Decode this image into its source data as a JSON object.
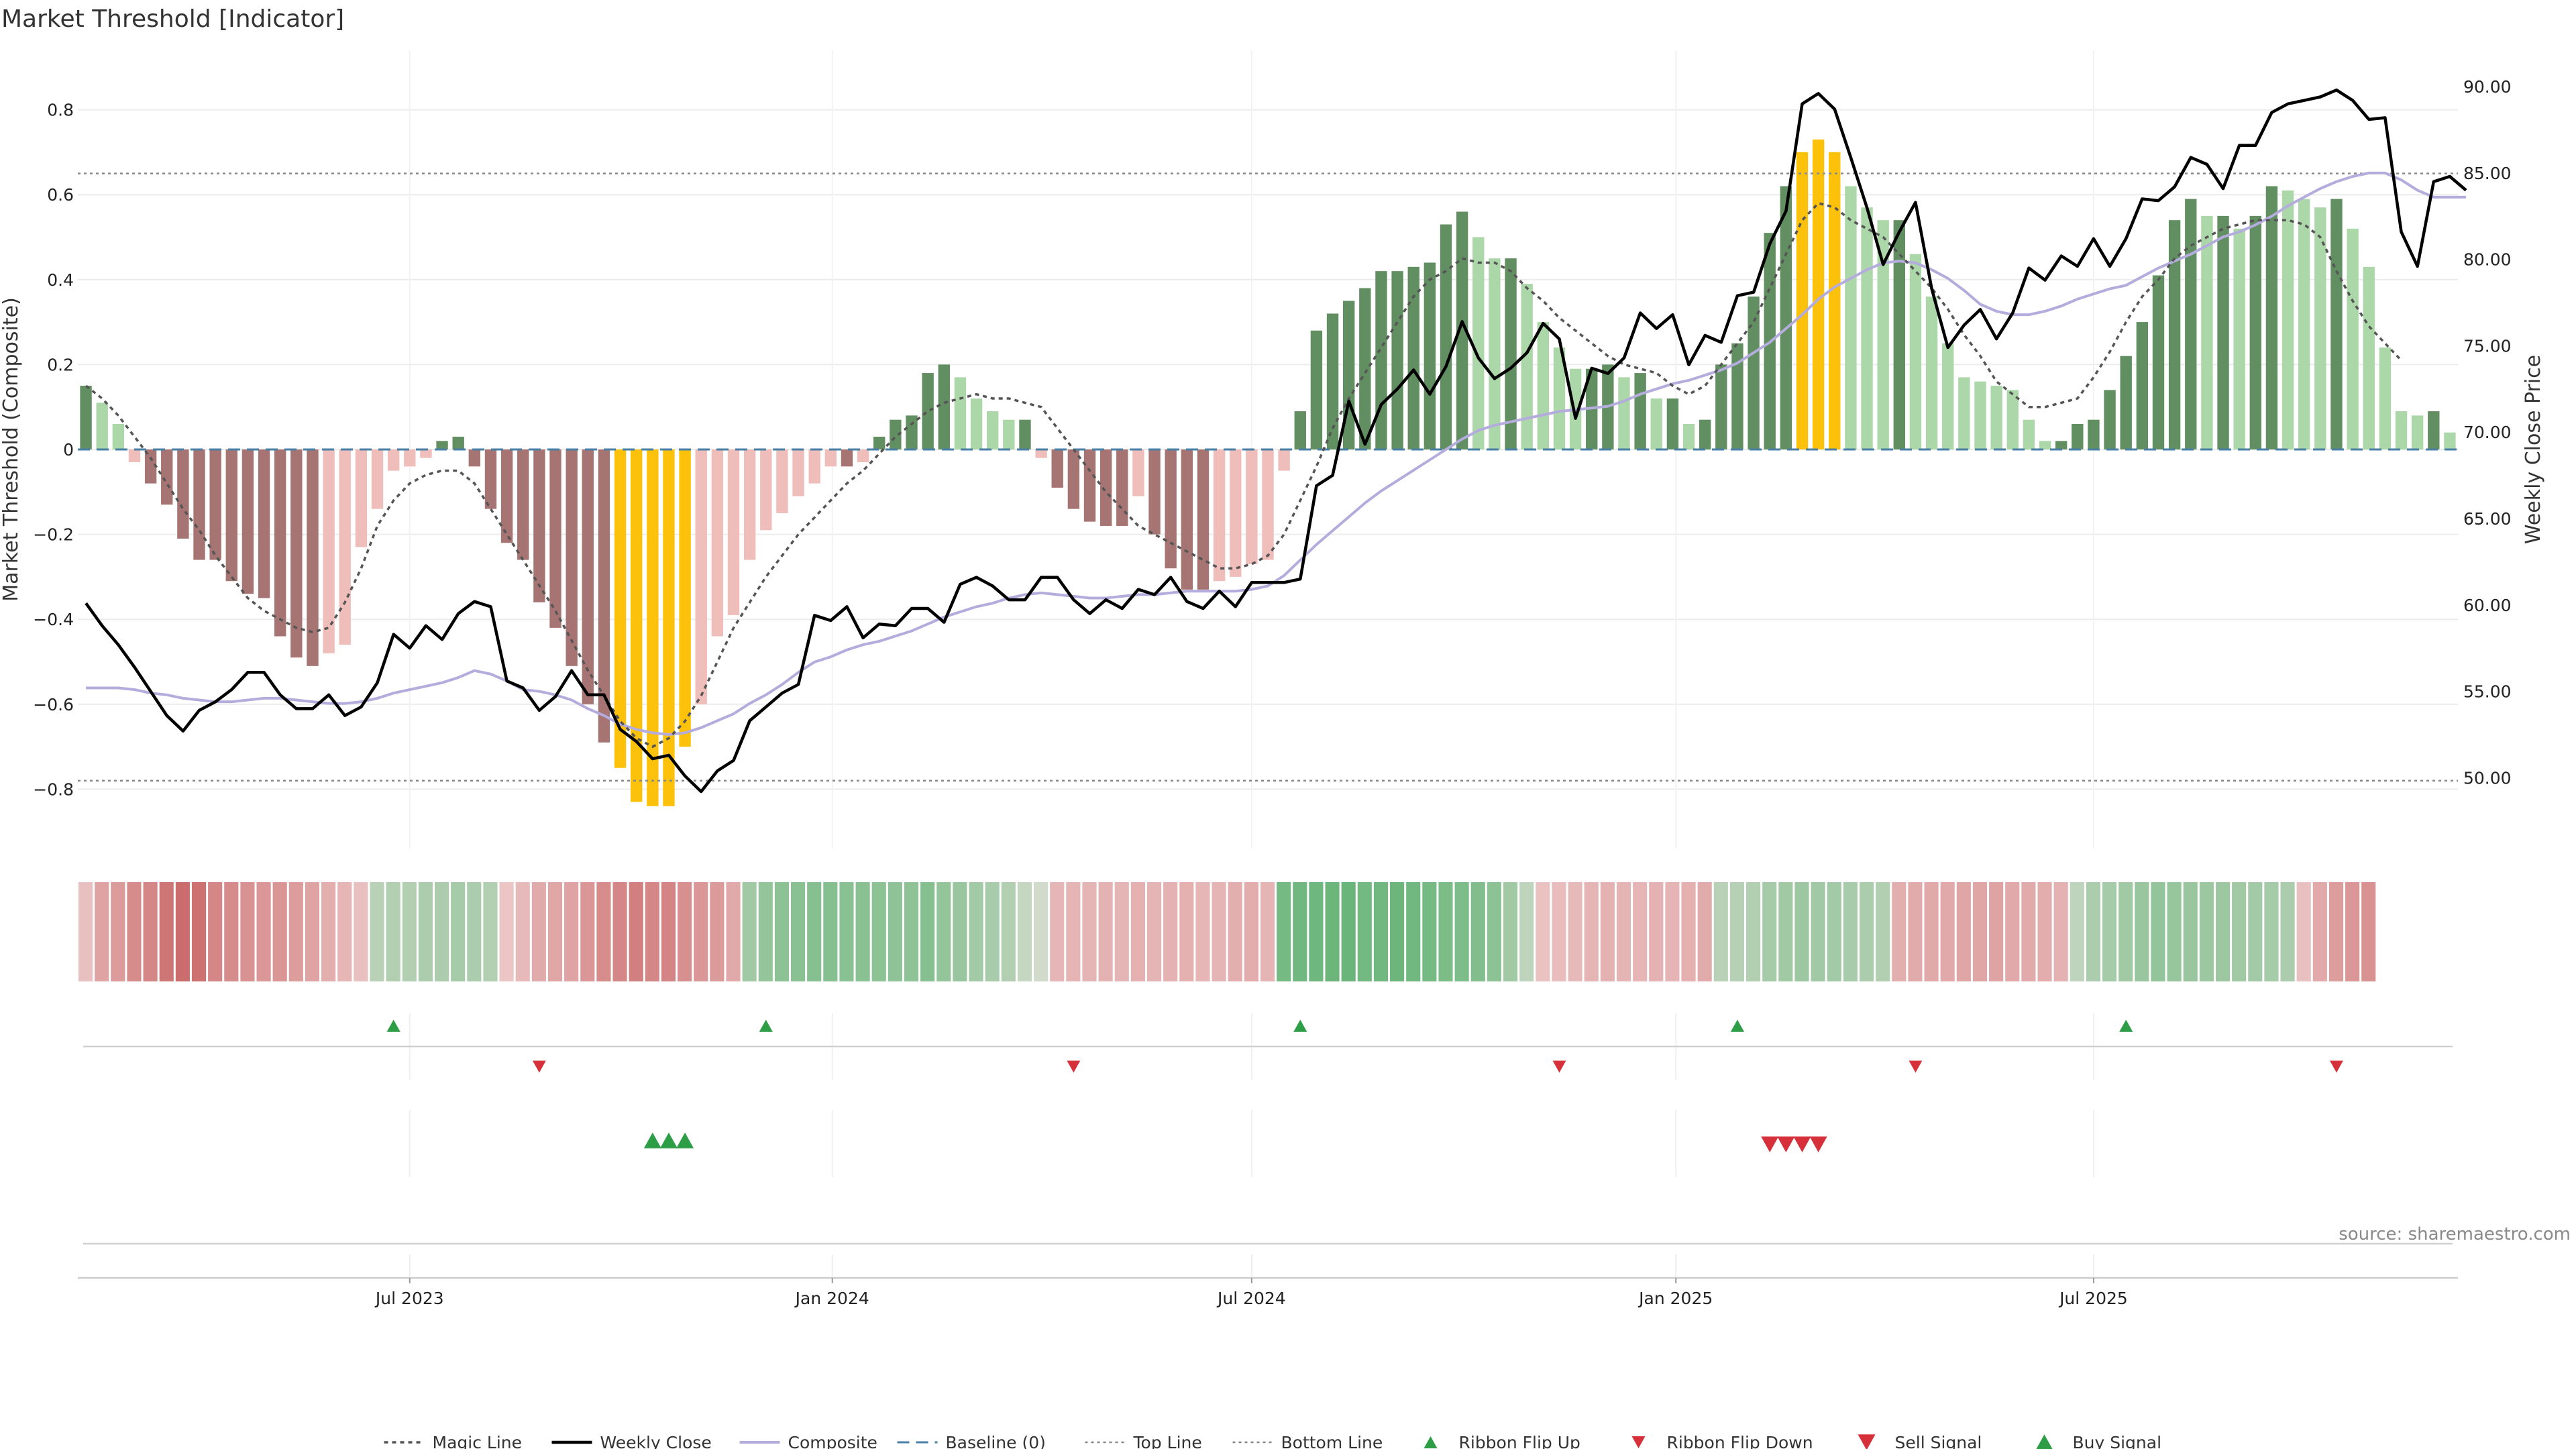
{
  "chart_data": {
    "type": "bar",
    "title": "Market Threshold [Indicator]",
    "ylabel": "Market Threshold (Composite)",
    "y2label": "Weekly Close Price",
    "ylim": [
      -0.94,
      0.94
    ],
    "y2lim": [
      45.9,
      92.1
    ],
    "y_ticks": [
      {
        "v": 0.8,
        "label": "0.8"
      },
      {
        "v": 0.6,
        "label": "0.6"
      },
      {
        "v": 0.4,
        "label": "0.4"
      },
      {
        "v": 0.2,
        "label": "0.2"
      },
      {
        "v": 0,
        "label": "0"
      },
      {
        "v": -0.2,
        "label": "−0.2"
      },
      {
        "v": -0.4,
        "label": "−0.4"
      },
      {
        "v": -0.6,
        "label": "−0.6"
      },
      {
        "v": -0.8,
        "label": "−0.8"
      }
    ],
    "y2_ticks": [
      {
        "v": 90,
        "label": "90.00"
      },
      {
        "v": 85,
        "label": "85.00"
      },
      {
        "v": 80,
        "label": "80.00"
      },
      {
        "v": 75,
        "label": "75.00"
      },
      {
        "v": 70,
        "label": "70.00"
      },
      {
        "v": 65,
        "label": "65.00"
      },
      {
        "v": 60,
        "label": "60.00"
      },
      {
        "v": 55,
        "label": "55.00"
      },
      {
        "v": 50,
        "label": "50.00"
      }
    ],
    "x_ticks": [
      {
        "week": 20.5,
        "label": "Jul 2023"
      },
      {
        "week": 46.6,
        "label": "Jan 2024"
      },
      {
        "week": 72.5,
        "label": "Jul 2024"
      },
      {
        "week": 98.7,
        "label": "Jan 2025"
      },
      {
        "week": 124.5,
        "label": "Jul 2025"
      }
    ],
    "composite_bars": [
      0.15,
      0.11,
      0.06,
      -0.03,
      -0.08,
      -0.13,
      -0.21,
      -0.26,
      -0.26,
      -0.31,
      -0.34,
      -0.35,
      -0.44,
      -0.49,
      -0.51,
      -0.48,
      -0.46,
      -0.23,
      -0.14,
      -0.05,
      -0.04,
      -0.02,
      0.02,
      0.03,
      -0.04,
      -0.14,
      -0.22,
      -0.26,
      -0.36,
      -0.42,
      -0.51,
      -0.6,
      -0.69,
      -0.75,
      -0.83,
      -0.84,
      -0.84,
      -0.7,
      -0.6,
      -0.44,
      -0.39,
      -0.26,
      -0.19,
      -0.15,
      -0.11,
      -0.08,
      -0.04,
      -0.04,
      -0.03,
      0.03,
      0.07,
      0.08,
      0.18,
      0.2,
      0.17,
      0.12,
      0.09,
      0.07,
      0.07,
      -0.02,
      -0.09,
      -0.14,
      -0.17,
      -0.18,
      -0.18,
      -0.11,
      -0.2,
      -0.28,
      -0.33,
      -0.33,
      -0.31,
      -0.3,
      -0.27,
      -0.26,
      -0.05,
      0.09,
      0.28,
      0.32,
      0.35,
      0.38,
      0.42,
      0.42,
      0.43,
      0.44,
      0.53,
      0.56,
      0.5,
      0.45,
      0.45,
      0.39,
      0.3,
      0.24,
      0.19,
      0.19,
      0.2,
      0.17,
      0.18,
      0.12,
      0.12,
      0.06,
      0.07,
      0.2,
      0.25,
      0.36,
      0.51,
      0.62,
      0.7,
      0.73,
      0.7,
      0.62,
      0.57,
      0.54,
      0.54,
      0.46,
      0.36,
      0.25,
      0.17,
      0.16,
      0.15,
      0.14,
      0.07,
      0.02,
      0.02,
      0.06,
      0.07,
      0.14,
      0.22,
      0.3,
      0.41,
      0.54,
      0.59,
      0.55,
      0.55,
      0.52,
      0.55,
      0.62,
      0.61,
      0.59,
      0.57,
      0.59,
      0.52,
      0.43,
      0.24,
      0.09,
      0.08,
      0.09,
      0.04
    ],
    "weekly_close": [
      60.1,
      58.8,
      57.7,
      56.4,
      55.0,
      53.6,
      52.7,
      53.9,
      54.4,
      55.1,
      56.1,
      56.1,
      54.8,
      54.0,
      54.0,
      54.8,
      53.6,
      54.1,
      55.5,
      58.3,
      57.5,
      58.8,
      58.0,
      59.5,
      60.2,
      59.9,
      55.6,
      55.2,
      53.9,
      54.7,
      56.2,
      54.8,
      54.8,
      52.8,
      52.1,
      51.1,
      51.3,
      50.1,
      49.2,
      50.4,
      51.0,
      53.3,
      54.1,
      54.9,
      55.4,
      59.4,
      59.1,
      59.9,
      58.1,
      58.9,
      58.8,
      59.8,
      59.8,
      59.0,
      61.2,
      61.6,
      61.1,
      60.3,
      60.3,
      61.6,
      61.6,
      60.3,
      59.5,
      60.3,
      59.8,
      60.9,
      60.6,
      61.6,
      60.2,
      59.8,
      60.8,
      59.9,
      61.3,
      61.3,
      61.3,
      61.5,
      66.9,
      67.5,
      71.8,
      69.3,
      71.6,
      72.5,
      73.6,
      72.2,
      73.8,
      76.4,
      74.3,
      73.1,
      73.7,
      74.6,
      76.3,
      75.4,
      70.8,
      73.7,
      73.4,
      74.3,
      76.9,
      76.0,
      76.8,
      73.9,
      75.6,
      75.2,
      77.9,
      78.1,
      80.9,
      82.8,
      89.0,
      89.6,
      88.7,
      85.9,
      83.0,
      79.7,
      81.6,
      83.3,
      78.3,
      74.9,
      76.2,
      77.1,
      75.4,
      76.9,
      79.5,
      78.8,
      80.2,
      79.6,
      81.2,
      79.6,
      81.2,
      83.5,
      83.4,
      84.2,
      85.9,
      85.5,
      84.1,
      86.6,
      86.6,
      88.5,
      89.0,
      89.2,
      89.4,
      89.8,
      89.2,
      88.1,
      88.2,
      81.6,
      79.6,
      84.5,
      84.8,
      84.0
    ],
    "magic_line": [
      0.15,
      0.12,
      0.08,
      0.03,
      -0.02,
      -0.08,
      -0.14,
      -0.19,
      -0.25,
      -0.3,
      -0.35,
      -0.38,
      -0.4,
      -0.42,
      -0.43,
      -0.42,
      -0.36,
      -0.28,
      -0.18,
      -0.12,
      -0.08,
      -0.06,
      -0.05,
      -0.05,
      -0.08,
      -0.14,
      -0.2,
      -0.26,
      -0.32,
      -0.38,
      -0.45,
      -0.52,
      -0.58,
      -0.64,
      -0.68,
      -0.7,
      -0.68,
      -0.64,
      -0.58,
      -0.5,
      -0.42,
      -0.36,
      -0.3,
      -0.25,
      -0.2,
      -0.16,
      -0.12,
      -0.08,
      -0.05,
      -0.01,
      0.03,
      0.06,
      0.09,
      0.11,
      0.12,
      0.13,
      0.12,
      0.12,
      0.11,
      0.1,
      0.05,
      0.0,
      -0.05,
      -0.1,
      -0.14,
      -0.18,
      -0.2,
      -0.22,
      -0.24,
      -0.26,
      -0.28,
      -0.28,
      -0.27,
      -0.25,
      -0.2,
      -0.12,
      -0.04,
      0.05,
      0.12,
      0.18,
      0.24,
      0.3,
      0.36,
      0.4,
      0.42,
      0.45,
      0.44,
      0.44,
      0.42,
      0.38,
      0.35,
      0.31,
      0.28,
      0.25,
      0.22,
      0.2,
      0.19,
      0.18,
      0.15,
      0.13,
      0.15,
      0.2,
      0.25,
      0.3,
      0.38,
      0.46,
      0.54,
      0.58,
      0.57,
      0.54,
      0.52,
      0.5,
      0.46,
      0.42,
      0.38,
      0.33,
      0.27,
      0.22,
      0.16,
      0.13,
      0.1,
      0.1,
      0.11,
      0.12,
      0.17,
      0.23,
      0.3,
      0.36,
      0.4,
      0.45,
      0.48,
      0.5,
      0.52,
      0.53,
      0.54,
      0.54,
      0.54,
      0.53,
      0.5,
      0.42,
      0.35,
      0.29,
      0.25,
      0.21
    ],
    "composite_line": [
      55.2,
      55.2,
      55.2,
      55.1,
      54.9,
      54.8,
      54.6,
      54.5,
      54.4,
      54.4,
      54.5,
      54.6,
      54.6,
      54.5,
      54.4,
      54.3,
      54.3,
      54.4,
      54.6,
      54.9,
      55.1,
      55.3,
      55.5,
      55.8,
      56.2,
      56.0,
      55.6,
      55.1,
      55.0,
      54.8,
      54.5,
      54.0,
      53.6,
      53.1,
      52.8,
      52.6,
      52.5,
      52.6,
      52.9,
      53.3,
      53.7,
      54.3,
      54.8,
      55.4,
      56.1,
      56.7,
      57.0,
      57.4,
      57.7,
      57.9,
      58.2,
      58.5,
      58.9,
      59.3,
      59.6,
      59.9,
      60.1,
      60.4,
      60.6,
      60.7,
      60.6,
      60.5,
      60.4,
      60.4,
      60.5,
      60.6,
      60.6,
      60.7,
      60.8,
      60.8,
      60.8,
      60.8,
      60.9,
      61.1,
      61.7,
      62.6,
      63.5,
      64.3,
      65.1,
      65.9,
      66.6,
      67.2,
      67.8,
      68.4,
      69.0,
      69.6,
      70.1,
      70.4,
      70.6,
      70.8,
      71.0,
      71.2,
      71.3,
      71.4,
      71.5,
      71.8,
      72.2,
      72.5,
      72.8,
      73.0,
      73.3,
      73.6,
      74.0,
      74.6,
      75.2,
      76.0,
      76.8,
      77.7,
      78.4,
      78.9,
      79.4,
      79.8,
      79.9,
      79.8,
      79.4,
      78.9,
      78.2,
      77.4,
      77.0,
      76.8,
      76.8,
      77.0,
      77.3,
      77.7,
      78.0,
      78.3,
      78.5,
      79.0,
      79.5,
      79.9,
      80.3,
      80.8,
      81.3,
      81.6,
      82.0,
      82.5,
      83.1,
      83.6,
      84.1,
      84.5,
      84.8,
      85.0,
      85.0,
      84.6,
      84.0,
      83.6,
      83.6,
      83.6
    ],
    "ribbon": [
      -0.1,
      -0.35,
      -0.42,
      -0.55,
      -0.6,
      -0.75,
      -0.82,
      -0.78,
      -0.6,
      -0.55,
      -0.5,
      -0.45,
      -0.47,
      -0.4,
      -0.35,
      -0.25,
      -0.18,
      -0.1,
      0.25,
      0.3,
      0.3,
      0.35,
      0.35,
      0.4,
      0.35,
      0.3,
      -0.05,
      -0.15,
      -0.28,
      -0.32,
      -0.35,
      -0.45,
      -0.55,
      -0.6,
      -0.66,
      -0.6,
      -0.62,
      -0.52,
      -0.45,
      -0.42,
      -0.3,
      0.45,
      0.55,
      0.6,
      0.62,
      0.65,
      0.65,
      0.62,
      0.62,
      0.6,
      0.58,
      0.58,
      0.65,
      0.55,
      0.5,
      0.42,
      0.38,
      0.3,
      0.15,
      0.05,
      -0.18,
      -0.2,
      -0.2,
      -0.22,
      -0.2,
      -0.24,
      -0.2,
      -0.22,
      -0.24,
      -0.18,
      -0.2,
      -0.25,
      -0.26,
      -0.2,
      0.78,
      0.82,
      0.84,
      0.86,
      0.88,
      0.8,
      0.82,
      0.86,
      0.82,
      0.78,
      0.74,
      0.72,
      0.68,
      0.6,
      0.45,
      0.2,
      -0.08,
      -0.12,
      -0.15,
      -0.2,
      -0.22,
      -0.2,
      -0.18,
      -0.22,
      -0.2,
      -0.24,
      -0.28,
      0.25,
      0.28,
      0.3,
      0.4,
      0.45,
      0.48,
      0.44,
      0.42,
      0.38,
      0.35,
      0.3,
      -0.25,
      -0.28,
      -0.3,
      -0.3,
      -0.32,
      -0.33,
      -0.35,
      -0.3,
      -0.28,
      -0.26,
      -0.22,
      0.2,
      0.35,
      0.4,
      0.45,
      0.5,
      0.55,
      0.52,
      0.5,
      0.48,
      0.48,
      0.45,
      0.42,
      0.4,
      0.35,
      -0.1,
      -0.3,
      -0.4,
      -0.45,
      -0.5
    ],
    "ribbon_flip_up_weeks": [
      19,
      42,
      75,
      102,
      126
    ],
    "ribbon_flip_down_weeks": [
      28,
      61,
      91,
      113,
      139
    ],
    "buy_signal_weeks": [
      35,
      36,
      37
    ],
    "sell_signal_weeks": [
      104,
      105,
      106,
      107
    ],
    "magic_threshold_line": 0.65,
    "top_line": 0.65,
    "bottom_line": -0.78,
    "baseline": 0,
    "legend_placement": "bottom-center",
    "grid": true,
    "colors": {
      "bar_pos_strong": "#628f62",
      "bar_pos_weak": "#acd7a8",
      "bar_neg_strong": "#a67473",
      "bar_neg_weak": "#efbdba",
      "bar_extreme": "#fcc10a",
      "weekly_close": "#000000",
      "composite": "#b3acdc",
      "magic": "#555555",
      "baseline": "#4a7fa6",
      "flip_up": "#2e9e46",
      "flip_down": "#d6303a",
      "buy": "#2e9e46",
      "sell": "#d6303a"
    },
    "legend": [
      {
        "key": "magic",
        "label": "Magic Line",
        "style": "dotted-dark"
      },
      {
        "key": "close",
        "label": "Weekly Close",
        "style": "solid-black"
      },
      {
        "key": "composite",
        "label": "Composite",
        "style": "solid-lavender"
      },
      {
        "key": "baseline",
        "label": "Baseline (0)",
        "style": "dashed-blue"
      },
      {
        "key": "top",
        "label": "Top Line",
        "style": "dotted-gray"
      },
      {
        "key": "bottom",
        "label": "Bottom Line",
        "style": "dotted-gray"
      },
      {
        "key": "flip_up",
        "label": "Ribbon Flip Up",
        "style": "tri-up-green"
      },
      {
        "key": "flip_down",
        "label": "Ribbon Flip Down",
        "style": "tri-down-red"
      },
      {
        "key": "sell",
        "label": "Sell Signal",
        "style": "tri-down-red-big"
      },
      {
        "key": "buy",
        "label": "Buy Signal",
        "style": "tri-up-green-big"
      }
    ],
    "source": "source: sharemaestro.com"
  }
}
